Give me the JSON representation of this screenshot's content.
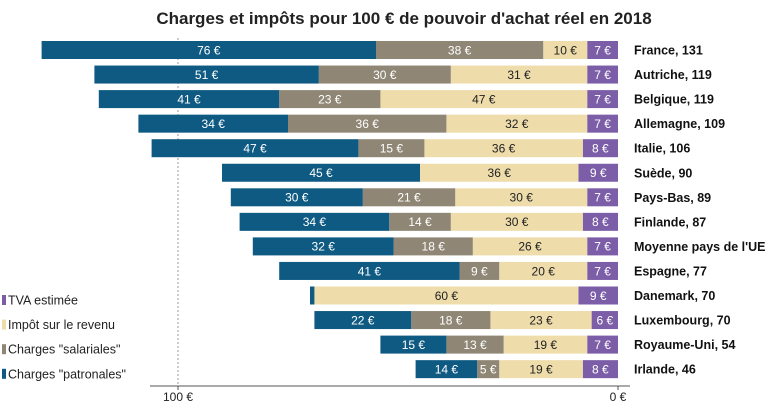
{
  "chart_data": {
    "type": "bar",
    "orientation": "horizontal",
    "stacked": true,
    "title": "Charges et impôts pour 100 € de pouvoir d'achat réel en 2018",
    "categories": [
      "France, 131",
      "Autriche, 119",
      "Belgique, 119",
      "Allemagne, 109",
      "Italie, 106",
      "Suède, 90",
      "Pays-Bas, 89",
      "Finlande, 87",
      "Moyenne pays de l'UE",
      "Espagne, 77",
      "Danemark, 70",
      "Luxembourg, 70",
      "Royaume-Uni, 54",
      "Irlande, 46"
    ],
    "series": [
      {
        "name": "TVA estimée",
        "color": "#7b5ea7",
        "values": [
          7,
          7,
          7,
          7,
          8,
          9,
          7,
          8,
          7,
          7,
          9,
          6,
          7,
          8
        ]
      },
      {
        "name": "Impôt sur le revenu",
        "color": "#eedcab",
        "values": [
          10,
          31,
          47,
          32,
          36,
          36,
          30,
          30,
          26,
          20,
          60,
          23,
          19,
          19
        ]
      },
      {
        "name": "Charges \"salariales\"",
        "color": "#8f8675",
        "values": [
          38,
          30,
          23,
          36,
          15,
          0,
          21,
          14,
          18,
          9,
          0,
          18,
          13,
          5
        ]
      },
      {
        "name": "Charges \"patronales\"",
        "color": "#0f5a82",
        "values": [
          76,
          51,
          41,
          34,
          47,
          45,
          30,
          34,
          32,
          41,
          1,
          22,
          15,
          14
        ]
      }
    ],
    "data_labels": [
      [
        "7 €",
        "10 €",
        "38 €",
        "76 €"
      ],
      [
        "7 €",
        "31 €",
        "30 €",
        "51 €"
      ],
      [
        "7 €",
        "47 €",
        "23 €",
        "41 €"
      ],
      [
        "7 €",
        "32 €",
        "36 €",
        "34 €"
      ],
      [
        "8 €",
        "36 €",
        "15 €",
        "47 €"
      ],
      [
        "9 €",
        "36 €",
        "",
        "45 €"
      ],
      [
        "7 €",
        "30 €",
        "21 €",
        "30 €"
      ],
      [
        "8 €",
        "30 €",
        "14 €",
        "34 €"
      ],
      [
        "7 €",
        "26 €",
        "18 €",
        "32 €"
      ],
      [
        "7 €",
        "20 €",
        "9 €",
        "41 €"
      ],
      [
        "9 €",
        "60 €",
        "",
        ""
      ],
      [
        "6 €",
        "23 €",
        "18 €",
        "22 €"
      ],
      [
        "7 €",
        "19 €",
        "13 €",
        "15 €"
      ],
      [
        "8 €",
        "19 €",
        "5 €",
        "14 €"
      ]
    ],
    "x_ticks": [
      "100 €",
      "0 €"
    ],
    "x_tick_values": [
      100,
      0
    ],
    "xlim": [
      0,
      131
    ],
    "x_reversed": true,
    "gridline_at": 100,
    "legend_position": "left",
    "legend_order": [
      "TVA estimée",
      "Impôt sur le revenu",
      "Charges \"salariales\"",
      "Charges \"patronales\""
    ]
  }
}
